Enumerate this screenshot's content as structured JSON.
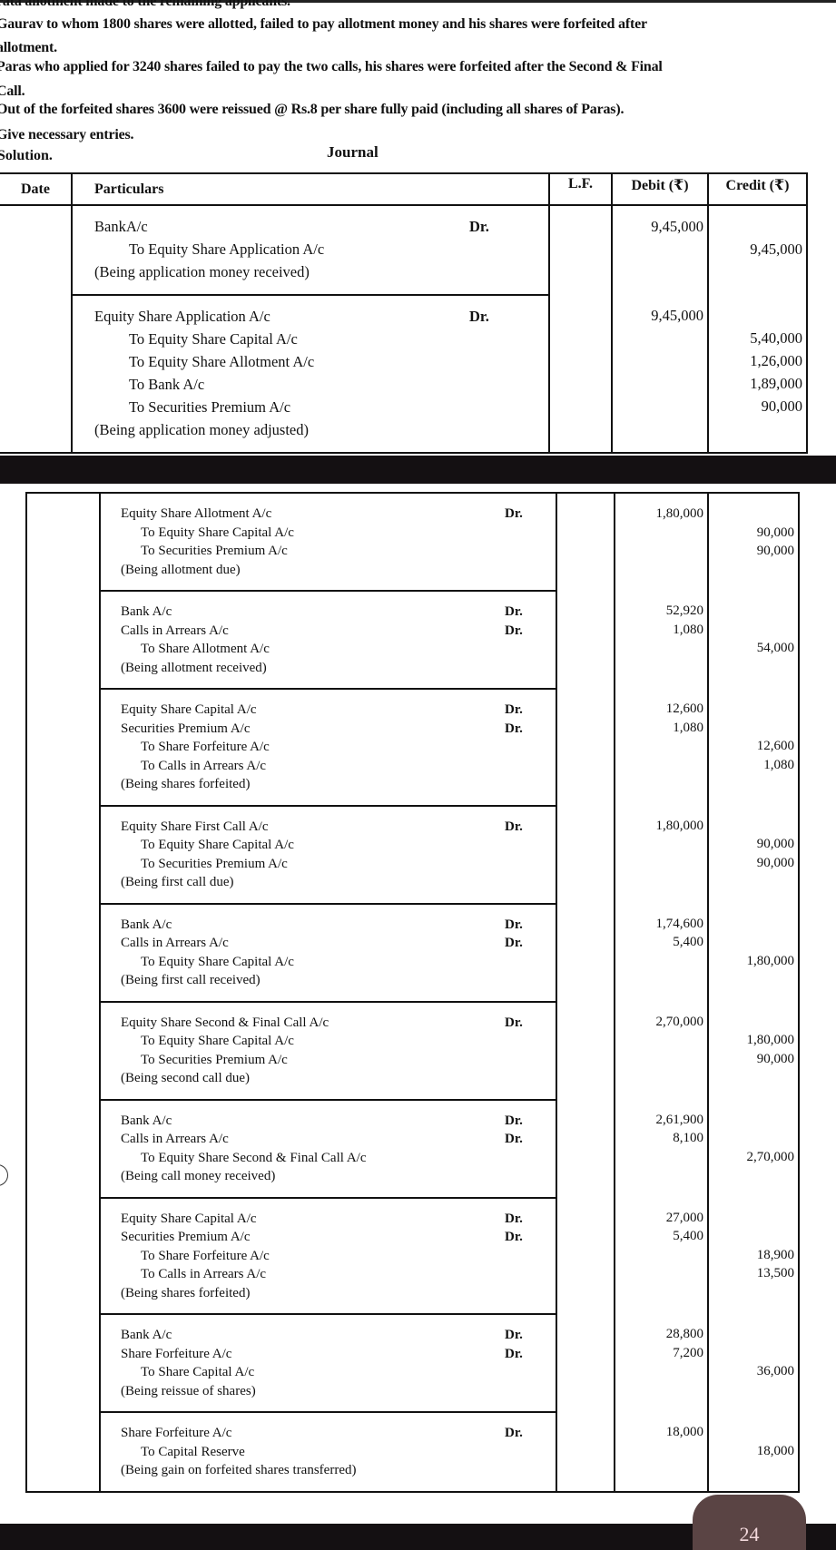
{
  "intro": {
    "lines": [
      "rata allotment made to the remaining applicants.",
      "Gaurav to whom 1800 shares were allotted, failed to pay allotment money and his shares were forfeited after",
      "allotment.",
      "Paras who applied for 3240 shares failed to pay the two calls, his shares were forfeited after the Second & Final",
      "Call.",
      "Out of the forfeited shares 3600 were reissued @ Rs.8 per share fully paid (including all shares of Paras).",
      "Give necessary entries."
    ],
    "solution_label": "Solution.",
    "journal_title": "Journal"
  },
  "journal": {
    "headers": {
      "date": "Date",
      "particulars": "Particulars",
      "lf": "L.F.",
      "debit": "Debit (₹)",
      "credit": "Credit (₹)"
    },
    "dr_label": "Dr.",
    "part1": [
      {
        "lines": [
          {
            "text": "BankA/c",
            "dr": true,
            "debit": "9,45,000"
          },
          {
            "text": "To Equity Share Application A/c",
            "indent": true,
            "credit": "9,45,000"
          },
          {
            "text": "(Being application money received)"
          }
        ]
      },
      {
        "lines": [
          {
            "text": "Equity Share Application A/c",
            "dr": true,
            "debit": "9,45,000"
          },
          {
            "text": "To Equity Share Capital A/c",
            "indent": true,
            "credit": "5,40,000"
          },
          {
            "text": "To Equity Share Allotment A/c",
            "indent": true,
            "credit": "1,26,000"
          },
          {
            "text": "To Bank A/c",
            "indent": true,
            "credit": "1,89,000"
          },
          {
            "text": "To Securities Premium A/c",
            "indent": true,
            "credit": "90,000"
          },
          {
            "text": "(Being application money adjusted)"
          }
        ]
      }
    ],
    "part2": [
      {
        "lines": [
          {
            "text": "Equity Share Allotment A/c",
            "dr": true,
            "debit": "1,80,000"
          },
          {
            "text": "To Equity Share Capital A/c",
            "indent": true,
            "credit": "90,000"
          },
          {
            "text": "To Securities Premium A/c",
            "indent": true,
            "credit": "90,000"
          },
          {
            "text": "(Being allotment due)"
          }
        ]
      },
      {
        "lines": [
          {
            "text": "Bank A/c",
            "dr": true,
            "debit": "52,920"
          },
          {
            "text": "Calls in Arrears A/c",
            "dr": true,
            "debit": "1,080"
          },
          {
            "text": "To Share Allotment A/c",
            "indent": true,
            "credit": "54,000"
          },
          {
            "text": "(Being allotment received)"
          }
        ]
      },
      {
        "lines": [
          {
            "text": "Equity Share Capital A/c",
            "dr": true,
            "debit": "12,600"
          },
          {
            "text": "Securities Premium A/c",
            "dr": true,
            "debit": "1,080"
          },
          {
            "text": "To Share Forfeiture A/c",
            "indent": true,
            "credit": "12,600"
          },
          {
            "text": "To Calls in Arrears A/c",
            "indent": true,
            "credit": "1,080"
          },
          {
            "text": "(Being shares forfeited)"
          }
        ]
      },
      {
        "lines": [
          {
            "text": "Equity Share First Call A/c",
            "dr": true,
            "debit": "1,80,000"
          },
          {
            "text": "To Equity Share Capital A/c",
            "indent": true,
            "credit": "90,000"
          },
          {
            "text": "To Securities Premium A/c",
            "indent": true,
            "credit": "90,000"
          },
          {
            "text": "(Being first call due)"
          }
        ]
      },
      {
        "lines": [
          {
            "text": "Bank A/c",
            "dr": true,
            "debit": "1,74,600"
          },
          {
            "text": "Calls in Arrears A/c",
            "dr": true,
            "debit": "5,400"
          },
          {
            "text": "To Equity Share Capital A/c",
            "indent": true,
            "credit": "1,80,000"
          },
          {
            "text": "(Being first call received)"
          }
        ]
      },
      {
        "lines": [
          {
            "text": "Equity Share Second & Final Call A/c",
            "dr": true,
            "debit": "2,70,000"
          },
          {
            "text": "To Equity Share Capital A/c",
            "indent": true,
            "credit": "1,80,000"
          },
          {
            "text": "To Securities Premium A/c",
            "indent": true,
            "credit": "90,000"
          },
          {
            "text": "(Being second call due)"
          }
        ]
      },
      {
        "lines": [
          {
            "text": "Bank A/c",
            "dr": true,
            "debit": "2,61,900"
          },
          {
            "text": "Calls in Arrears A/c",
            "dr": true,
            "debit": "8,100"
          },
          {
            "text": "To Equity Share Second & Final Call A/c",
            "indent": true,
            "credit": "2,70,000"
          },
          {
            "text": "(Being call money received)"
          }
        ]
      },
      {
        "lines": [
          {
            "text": "Equity Share Capital A/c",
            "dr": true,
            "debit": "27,000"
          },
          {
            "text": "Securities Premium A/c",
            "dr": true,
            "debit": "5,400"
          },
          {
            "text": "To Share Forfeiture A/c",
            "indent": true,
            "credit": "18,900"
          },
          {
            "text": "To Calls in Arrears A/c",
            "indent": true,
            "credit": "13,500"
          },
          {
            "text": "(Being shares forfeited)"
          }
        ]
      },
      {
        "lines": [
          {
            "text": "Bank A/c",
            "dr": true,
            "debit": "28,800"
          },
          {
            "text": "Share Forfeiture A/c",
            "dr": true,
            "debit": "7,200"
          },
          {
            "text": "To Share Capital A/c",
            "indent": true,
            "credit": "36,000"
          },
          {
            "text": "(Being reissue of shares)"
          }
        ]
      },
      {
        "lines": [
          {
            "text": "Share Forfeiture A/c",
            "dr": true,
            "debit": "18,000"
          },
          {
            "text": "To Capital Reserve",
            "indent": true,
            "credit": "18,000"
          },
          {
            "text": "(Being gain on forfeited shares transferred)"
          }
        ]
      }
    ]
  },
  "page_badge": {
    "text": "24",
    "color": "#5a4444"
  }
}
